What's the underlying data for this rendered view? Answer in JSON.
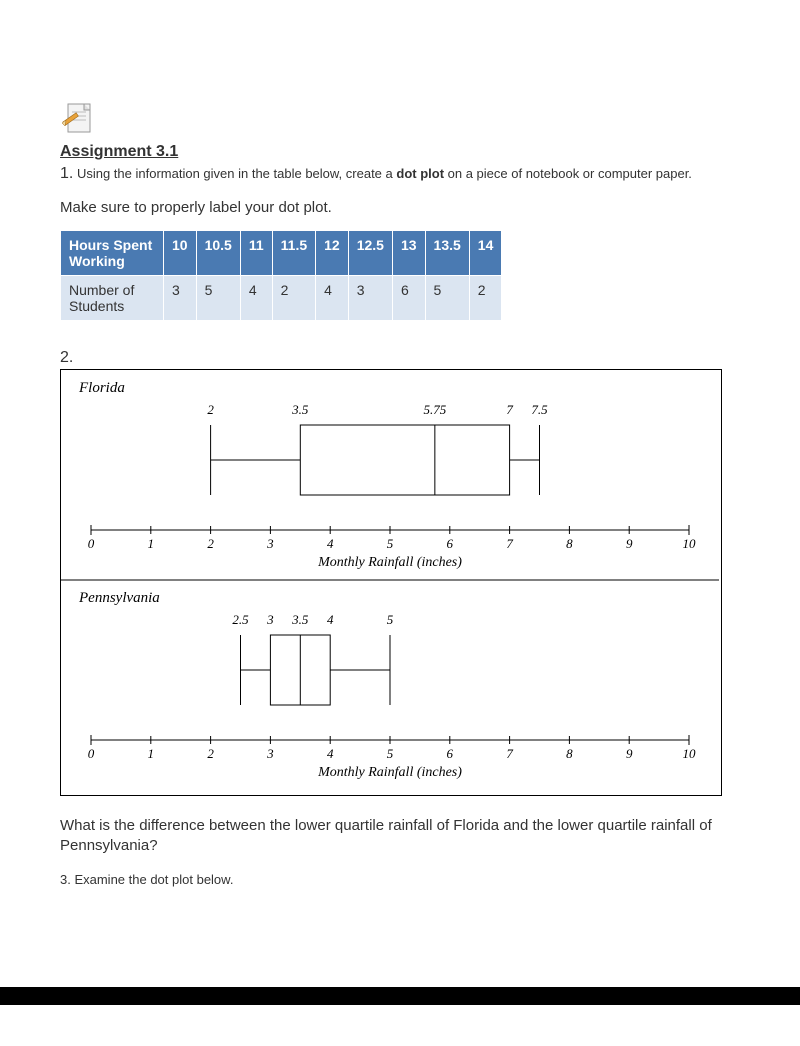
{
  "assignment": {
    "title": "Assignment 3.1",
    "q1_prefix": "1.",
    "q1_text_a": " Using the information given in the table below, create a ",
    "q1_bold": "dot plot",
    "q1_text_b": " on a piece of notebook or computer paper.",
    "label_note": "Make sure to properly label your dot plot."
  },
  "table": {
    "header_label": "Hours Spent Working",
    "headers": [
      "10",
      "10.5",
      "11",
      "11.5",
      "12",
      "12.5",
      "13",
      "13.5",
      "14"
    ],
    "row_label": "Number of Students",
    "row_values": [
      "3",
      "5",
      "4",
      "2",
      "4",
      "3",
      "6",
      "5",
      "2"
    ],
    "header_bg": "#4a7ab2",
    "header_fg": "#ffffff",
    "cell_bg": "#dbe5f1",
    "cell_fg": "#333333"
  },
  "q2": {
    "num": "2.",
    "florida": {
      "title": "Florida",
      "min": 2,
      "q1": 3.5,
      "median": 5.75,
      "q3": 7,
      "max": 7.5,
      "labels": {
        "min": "2",
        "q1": "3.5",
        "median": "5.75",
        "q3": "7",
        "max": "7.5"
      }
    },
    "pennsylvania": {
      "title": "Pennsylvania",
      "min": 2.5,
      "q1": 3,
      "median": 3.5,
      "q3": 4,
      "max": 5,
      "labels": {
        "min": "2.5",
        "q1": "3",
        "median": "3.5",
        "q3": "4",
        "max": "5"
      }
    },
    "axis": {
      "min": 0,
      "max": 10,
      "ticks": [
        0,
        1,
        2,
        3,
        4,
        5,
        6,
        7,
        8,
        9,
        10
      ],
      "tick_labels": [
        "0",
        "1",
        "2",
        "3",
        "4",
        "5",
        "6",
        "7",
        "8",
        "9",
        "10"
      ],
      "label": "Monthly Rainfall (inches)",
      "label_font": "italic 14px 'Times New Roman', serif",
      "tick_font": "italic 13px 'Times New Roman', serif",
      "title_font": "italic 15px 'Times New Roman', serif"
    },
    "question": "What is the difference between the lower quartile rainfall of Florida and the lower quartile rainfall of Pennsylvania?"
  },
  "q3": {
    "text": "3. Examine the dot plot below."
  },
  "icon": {
    "name": "pencil-paper-icon"
  }
}
